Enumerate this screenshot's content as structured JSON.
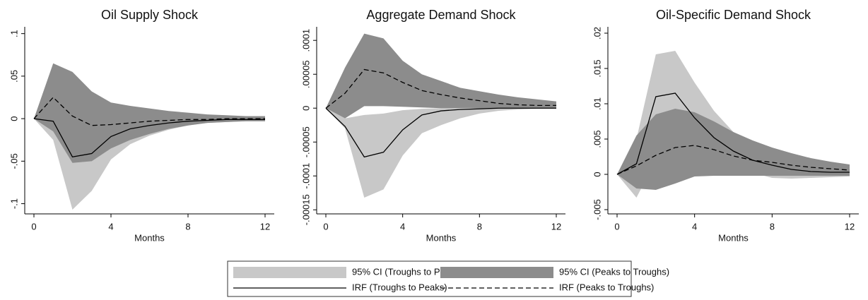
{
  "chart_data": [
    {
      "type": "line",
      "title": "Oil Supply Shock",
      "xlabel": "Months",
      "x": [
        0,
        1,
        2,
        3,
        4,
        5,
        6,
        7,
        8,
        9,
        10,
        11,
        12
      ],
      "xlim": [
        0,
        12
      ],
      "xticks": [
        0,
        4,
        8,
        12
      ],
      "ylim": [
        -0.112,
        0.108
      ],
      "yticks": [
        {
          "value": -0.1,
          "label": "-.1"
        },
        {
          "value": -0.05,
          "label": "-.05"
        },
        0,
        {
          "value": 0.05,
          "label": ".05"
        },
        {
          "value": 0.1,
          "label": ".1"
        }
      ],
      "series": [
        {
          "kind": "band",
          "color": "#c8c8c8",
          "lower": [
            0,
            -0.025,
            -0.107,
            -0.085,
            -0.048,
            -0.03,
            -0.02,
            -0.013,
            -0.008,
            -0.005,
            -0.004,
            -0.003,
            -0.003
          ],
          "upper": [
            0,
            0.02,
            0.01,
            0.002,
            0.005,
            0.004,
            0.004,
            0.003,
            0.003,
            0.002,
            0.002,
            0.002,
            0.002
          ]
        },
        {
          "kind": "band",
          "color": "#8c8c8c",
          "lower": [
            0,
            -0.015,
            -0.052,
            -0.05,
            -0.035,
            -0.025,
            -0.018,
            -0.012,
            -0.008,
            -0.005,
            -0.004,
            -0.003,
            -0.003
          ],
          "upper": [
            0,
            0.065,
            0.055,
            0.032,
            0.019,
            0.015,
            0.012,
            0.009,
            0.007,
            0.005,
            0.004,
            0.003,
            0.003
          ]
        },
        {
          "kind": "line",
          "color": "#000000",
          "dash": false,
          "values": [
            0,
            -0.003,
            -0.045,
            -0.041,
            -0.021,
            -0.012,
            -0.008,
            -0.005,
            -0.003,
            -0.002,
            -0.001,
            -0.001,
            -0.001
          ]
        },
        {
          "kind": "line",
          "color": "#000000",
          "dash": true,
          "values": [
            0,
            0.025,
            0.003,
            -0.008,
            -0.007,
            -0.005,
            -0.003,
            -0.002,
            -0.001,
            -0.001,
            0,
            0,
            0
          ]
        }
      ]
    },
    {
      "type": "line",
      "title": "Aggregate Demand Shock",
      "xlabel": "Months",
      "x": [
        0,
        1,
        2,
        3,
        4,
        5,
        6,
        7,
        8,
        9,
        10,
        11,
        12
      ],
      "xlim": [
        0,
        12
      ],
      "xticks": [
        0,
        4,
        8,
        12
      ],
      "ylim": [
        -0.000156,
        0.00012
      ],
      "yticks": [
        {
          "value": -0.00015,
          "label": "-.00015"
        },
        {
          "value": -0.0001,
          "label": "-.0001"
        },
        {
          "value": -5e-05,
          "label": "-.00005"
        },
        0,
        {
          "value": 5e-05,
          "label": ".00005"
        },
        {
          "value": 0.0001,
          "label": ".0001"
        }
      ],
      "series": [
        {
          "kind": "band",
          "color": "#c8c8c8",
          "lower": [
            0,
            -3e-05,
            -0.000132,
            -0.00012,
            -7e-05,
            -3.7e-05,
            -2.5e-05,
            -1.5e-05,
            -8e-06,
            -4e-06,
            -2e-06,
            -1e-06,
            -1e-06
          ],
          "upper": [
            0,
            -1.5e-05,
            -1e-05,
            -8e-06,
            -3e-06,
            -1e-06,
            0,
            0,
            0,
            0,
            0,
            0,
            0
          ]
        },
        {
          "kind": "band",
          "color": "#8c8c8c",
          "lower": [
            0,
            -1.5e-05,
            3e-06,
            3e-06,
            2e-06,
            1e-06,
            0,
            0,
            0,
            0,
            0,
            0,
            0
          ],
          "upper": [
            0,
            6e-05,
            0.00011,
            0.000103,
            7e-05,
            5e-05,
            4e-05,
            3e-05,
            2.5e-05,
            2e-05,
            1.6e-05,
            1.3e-05,
            1e-05
          ]
        },
        {
          "kind": "line",
          "color": "#000000",
          "dash": false,
          "values": [
            0,
            -2.7e-05,
            -7.2e-05,
            -6.5e-05,
            -3.2e-05,
            -1e-05,
            -4e-06,
            -2e-06,
            -1e-06,
            0,
            0,
            0,
            0
          ]
        },
        {
          "kind": "line",
          "color": "#000000",
          "dash": true,
          "values": [
            0,
            2.2e-05,
            5.7e-05,
            5.2e-05,
            3.8e-05,
            2.6e-05,
            2e-05,
            1.5e-05,
            1.1e-05,
            7e-06,
            5e-06,
            4e-06,
            4e-06
          ]
        }
      ]
    },
    {
      "type": "line",
      "title": "Oil-Specific Demand Shock",
      "xlabel": "Months",
      "x": [
        0,
        1,
        2,
        3,
        4,
        5,
        6,
        7,
        8,
        9,
        10,
        11,
        12
      ],
      "xlim": [
        0,
        12
      ],
      "xticks": [
        0,
        4,
        8,
        12
      ],
      "ylim": [
        -0.0056,
        0.0209
      ],
      "yticks": [
        {
          "value": -0.005,
          "label": "-.005"
        },
        0,
        {
          "value": 0.005,
          "label": ".005"
        },
        {
          "value": 0.01,
          "label": ".01"
        },
        {
          "value": 0.015,
          "label": ".015"
        },
        {
          "value": 0.02,
          "label": ".02"
        }
      ],
      "series": [
        {
          "kind": "band",
          "color": "#c8c8c8",
          "lower": [
            0,
            -0.0033,
            0.002,
            0.003,
            0.0025,
            0.0015,
            0.0008,
            0.0002,
            -0.0005,
            -0.0006,
            -0.0005,
            -0.0004,
            -0.0003
          ],
          "upper": [
            0,
            0.005,
            0.017,
            0.0175,
            0.013,
            0.009,
            0.006,
            0.004,
            0.003,
            0.002,
            0.0015,
            0.0012,
            0.001
          ]
        },
        {
          "kind": "band",
          "color": "#8c8c8c",
          "lower": [
            0,
            -0.002,
            -0.0022,
            -0.0013,
            -0.0003,
            -0.0002,
            -0.0002,
            -0.0002,
            -0.0002,
            -0.0002,
            -0.0002,
            -0.0002,
            -0.0002
          ],
          "upper": [
            0,
            0.0055,
            0.0085,
            0.0093,
            0.0088,
            0.0075,
            0.006,
            0.0048,
            0.0038,
            0.003,
            0.0023,
            0.0018,
            0.0014
          ]
        },
        {
          "kind": "line",
          "color": "#000000",
          "dash": false,
          "values": [
            0,
            0.0015,
            0.011,
            0.0115,
            0.008,
            0.0052,
            0.0033,
            0.002,
            0.0013,
            0.0007,
            0.0004,
            0.0003,
            0.0003
          ]
        },
        {
          "kind": "line",
          "color": "#000000",
          "dash": true,
          "values": [
            0,
            0.0012,
            0.0027,
            0.0038,
            0.0041,
            0.0035,
            0.0026,
            0.002,
            0.0017,
            0.0013,
            0.001,
            0.0008,
            0.0006
          ]
        }
      ]
    }
  ],
  "legend": [
    "95% CI (Troughs to Peaks)",
    "95% CI (Peaks to Troughs)",
    "IRF (Troughs to Peaks)",
    "IRF (Peaks to Troughs)"
  ]
}
